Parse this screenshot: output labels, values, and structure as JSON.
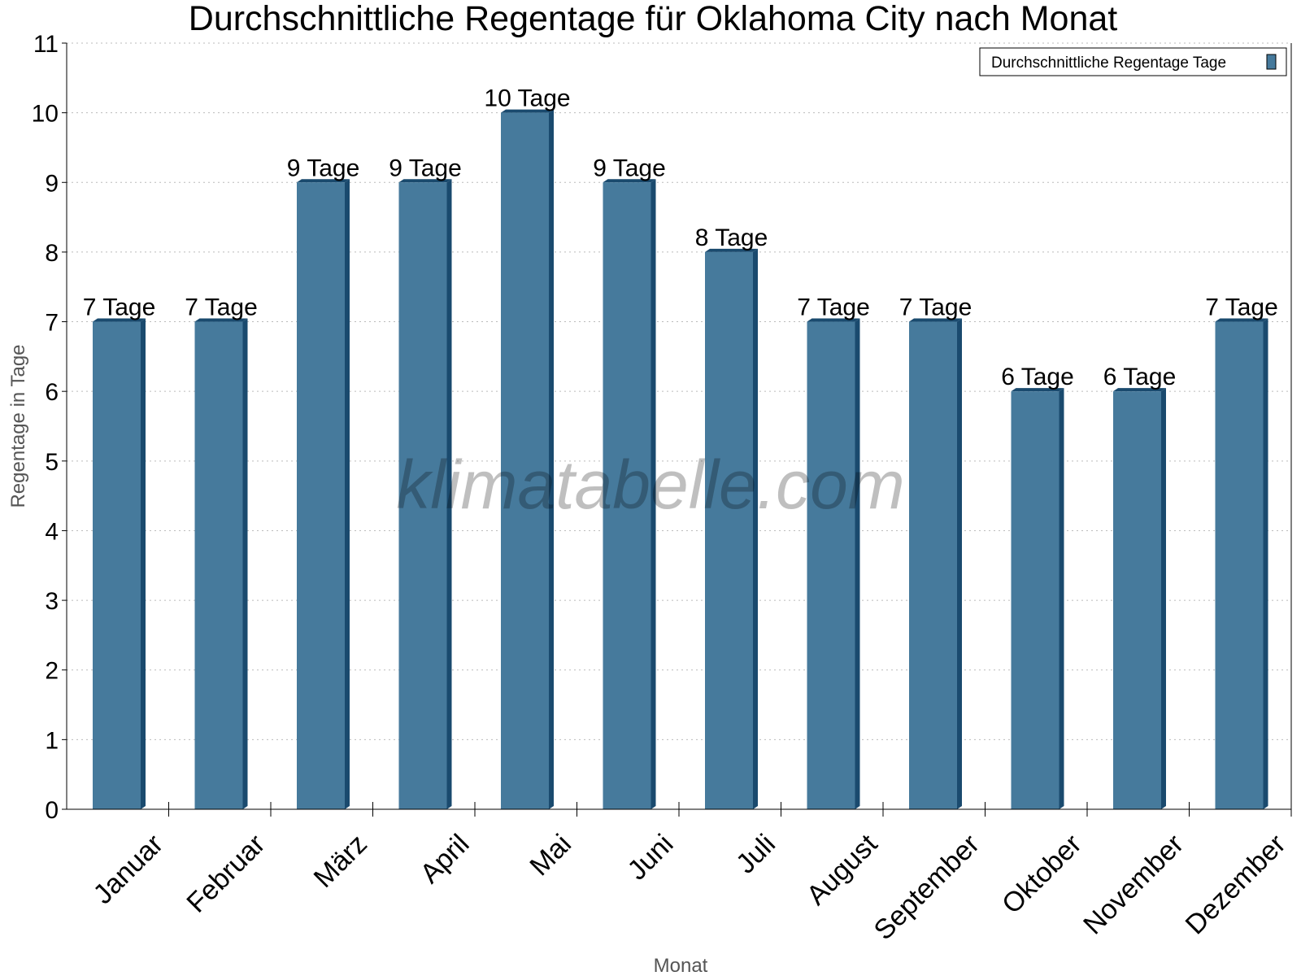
{
  "chart_data": {
    "type": "bar",
    "title": "Durchschnittliche Regentage für Oklahoma City nach Monat",
    "xlabel": "Monat",
    "ylabel": "Regentage in Tage",
    "ylim": [
      0,
      11
    ],
    "yticks": [
      0,
      1,
      2,
      3,
      4,
      5,
      6,
      7,
      8,
      9,
      10,
      11
    ],
    "grid": true,
    "legend_position": "top-right",
    "categories": [
      "Januar",
      "Februar",
      "März",
      "April",
      "Mai",
      "Juni",
      "Juli",
      "August",
      "September",
      "Oktober",
      "November",
      "Dezember"
    ],
    "series": [
      {
        "name": "Durchschnittliche Regentage Tage",
        "values": [
          7,
          7,
          9,
          9,
          10,
          9,
          8,
          7,
          7,
          6,
          6,
          7
        ],
        "data_labels": [
          "7 Tage",
          "7 Tage",
          "9 Tage",
          "9 Tage",
          "10 Tage",
          "9 Tage",
          "8 Tage",
          "7 Tage",
          "7 Tage",
          "6 Tage",
          "6 Tage",
          "7 Tage"
        ],
        "color": "#467a9c",
        "side_color": "#1a4a6e"
      }
    ]
  },
  "watermark": "klimatabelle.com"
}
